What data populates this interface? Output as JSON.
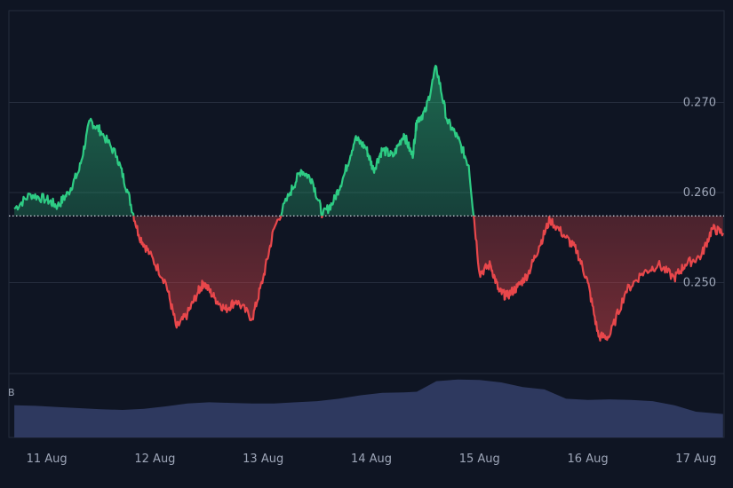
{
  "chart_data": {
    "type": "area",
    "title": "",
    "baseline": 0.2574,
    "ylim": [
      0.24,
      0.28
    ],
    "y_ticks": [
      "0.250",
      "0.260",
      "0.270"
    ],
    "x_ticks": [
      "11 Aug",
      "12 Aug",
      "13 Aug",
      "14 Aug",
      "15 Aug",
      "16 Aug",
      "17 Aug"
    ],
    "volume_axis_label": "B",
    "grid": true,
    "colors": {
      "background": "#0f1523",
      "above": "#2ecc84",
      "below": "#e8474b",
      "grid": "#252d3d",
      "volume": "#34406a"
    },
    "series": [
      {
        "x": [
          10.9,
          11.05,
          11.2,
          11.3,
          11.4,
          11.5,
          11.6,
          11.7,
          11.85,
          11.95,
          12.05,
          12.15,
          12.3,
          12.4,
          12.5,
          12.6,
          12.65,
          12.75,
          12.85,
          12.95,
          13.1,
          13.2,
          13.3,
          13.45,
          13.55,
          13.65,
          13.75,
          13.85,
          13.95,
          14.05,
          14.15,
          14.22,
          14.3,
          14.4,
          14.5,
          14.58,
          14.62,
          14.7,
          14.8,
          14.9,
          15.0,
          15.1,
          15.2,
          15.3,
          15.38,
          15.45,
          15.55,
          15.65,
          15.75,
          15.85,
          16.0,
          16.1,
          16.2,
          16.3,
          16.4,
          16.55,
          16.7,
          16.85,
          17.0,
          17.1,
          17.25,
          17.35,
          17.45
        ],
        "y": [
          0.2582,
          0.2598,
          0.2592,
          0.2585,
          0.26,
          0.2625,
          0.268,
          0.2668,
          0.264,
          0.26,
          0.2553,
          0.2532,
          0.25,
          0.245,
          0.2465,
          0.249,
          0.25,
          0.2483,
          0.247,
          0.248,
          0.246,
          0.2505,
          0.256,
          0.26,
          0.2625,
          0.2615,
          0.2575,
          0.259,
          0.262,
          0.266,
          0.265,
          0.2625,
          0.2648,
          0.264,
          0.2665,
          0.264,
          0.268,
          0.269,
          0.274,
          0.268,
          0.266,
          0.263,
          0.251,
          0.252,
          0.249,
          0.2485,
          0.2495,
          0.251,
          0.254,
          0.257,
          0.255,
          0.2535,
          0.25,
          0.244,
          0.244,
          0.249,
          0.251,
          0.252,
          0.2505,
          0.252,
          0.253,
          0.256,
          0.2555
        ]
      }
    ],
    "volume": {
      "x": [
        10.9,
        11.1,
        11.3,
        11.5,
        11.7,
        11.9,
        12.1,
        12.3,
        12.5,
        12.7,
        12.9,
        13.1,
        13.3,
        13.5,
        13.7,
        13.9,
        14.1,
        14.3,
        14.5,
        14.62,
        14.8,
        15.0,
        15.2,
        15.4,
        15.6,
        15.8,
        16.0,
        16.2,
        16.4,
        16.6,
        16.8,
        17.0,
        17.2,
        17.45
      ],
      "values": [
        0.55,
        0.54,
        0.52,
        0.5,
        0.48,
        0.47,
        0.49,
        0.53,
        0.58,
        0.6,
        0.59,
        0.58,
        0.58,
        0.6,
        0.62,
        0.66,
        0.72,
        0.76,
        0.77,
        0.78,
        0.96,
        0.99,
        0.98,
        0.94,
        0.86,
        0.82,
        0.66,
        0.64,
        0.65,
        0.64,
        0.62,
        0.55,
        0.44,
        0.4
      ]
    }
  }
}
